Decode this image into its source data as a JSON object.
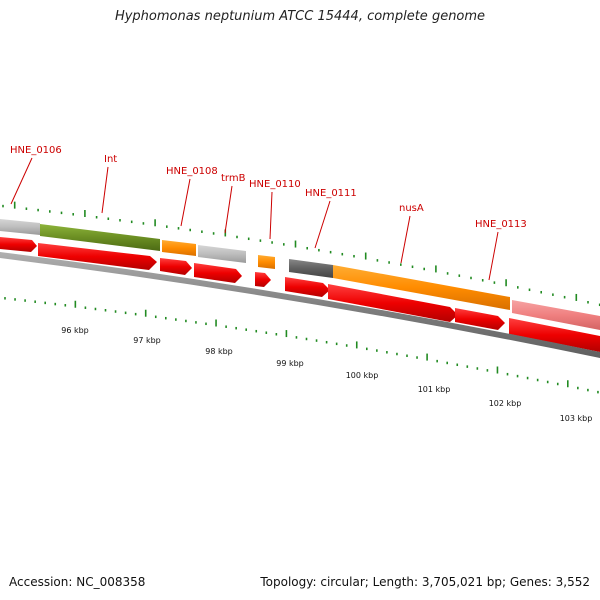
{
  "title": "Hyphomonas neptunium ATCC 15444, complete genome",
  "footer": {
    "accession": "Accession: NC_008358",
    "summary": "Topology: circular; Length: 3,705,021 bp; Genes: 3,552"
  },
  "colors": {
    "label": "#cc0000",
    "tick": "#228b22",
    "backbone": "#808080",
    "cds": "#ee0000",
    "grey_gene": "#bfbfbf",
    "olive_gene": "#6b8e23",
    "orange_gene": "#ff8c00",
    "dark_gene": "#606060",
    "pink_gene": "#f08080"
  },
  "gene_labels": [
    "HNE_0106",
    "Int",
    "HNE_0108",
    "trmB",
    "HNE_0110",
    "HNE_0111",
    "nusA",
    "HNE_0113"
  ],
  "kbp_labels": [
    "96 kbp",
    "97 kbp",
    "98 kbp",
    "99 kbp",
    "100 kbp",
    "101 kbp",
    "102 kbp",
    "103 kbp"
  ]
}
